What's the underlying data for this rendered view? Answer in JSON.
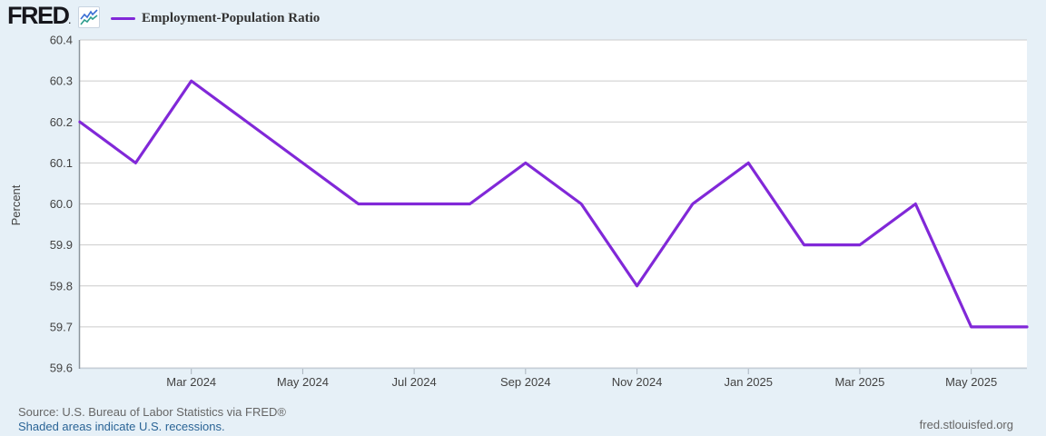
{
  "header": {
    "logo_text": "FRED",
    "logo_suffix": ".",
    "legend": {
      "label": "Employment-Population Ratio",
      "swatch_color": "#8128D8"
    }
  },
  "chart_data": {
    "type": "line",
    "title": "",
    "xlabel": "",
    "ylabel": "Percent",
    "ylim": [
      59.6,
      60.4
    ],
    "grid": "horizontal",
    "legend_position": "top-left",
    "x": [
      "Jan 2024",
      "Feb 2024",
      "Mar 2024",
      "Apr 2024",
      "May 2024",
      "Jun 2024",
      "Jul 2024",
      "Aug 2024",
      "Sep 2024",
      "Oct 2024",
      "Nov 2024",
      "Dec 2024",
      "Jan 2025",
      "Feb 2025",
      "Mar 2025",
      "Apr 2025",
      "May 2025",
      "Jun 2025"
    ],
    "x_tick_labels": [
      "Mar 2024",
      "May 2024",
      "Jul 2024",
      "Sep 2024",
      "Nov 2024",
      "Jan 2025",
      "Mar 2025",
      "May 2025"
    ],
    "y_ticks": [
      59.6,
      59.7,
      59.8,
      59.9,
      60.0,
      60.1,
      60.2,
      60.3,
      60.4
    ],
    "series": [
      {
        "name": "Employment-Population Ratio",
        "color": "#8128D8",
        "values": [
          60.2,
          60.1,
          60.3,
          60.2,
          60.1,
          60.0,
          60.0,
          60.0,
          60.1,
          60.0,
          59.8,
          60.0,
          60.1,
          59.9,
          59.9,
          60.0,
          59.7,
          59.7
        ]
      }
    ]
  },
  "footer": {
    "source_line": "Source: U.S. Bureau of Labor Statistics via FRED®",
    "recession_note": "Shaded areas indicate U.S. recessions.",
    "site_url": "fred.stlouisfed.org"
  },
  "colors": {
    "page_bg": "#E6F0F7",
    "plot_bg": "#FFFFFF",
    "grid": "#CCCCCC",
    "axis_left": "#8B949C",
    "axis_bottom": "#C6CFD9",
    "tick": "#AAB4BE",
    "tick_text": "#424242",
    "line": "#8128D8",
    "spark_blue": "#3B6FD4",
    "spark_teal": "#2F9E8F",
    "legend_text": "#333333",
    "source_text": "#666666",
    "link": "#2A6496"
  }
}
